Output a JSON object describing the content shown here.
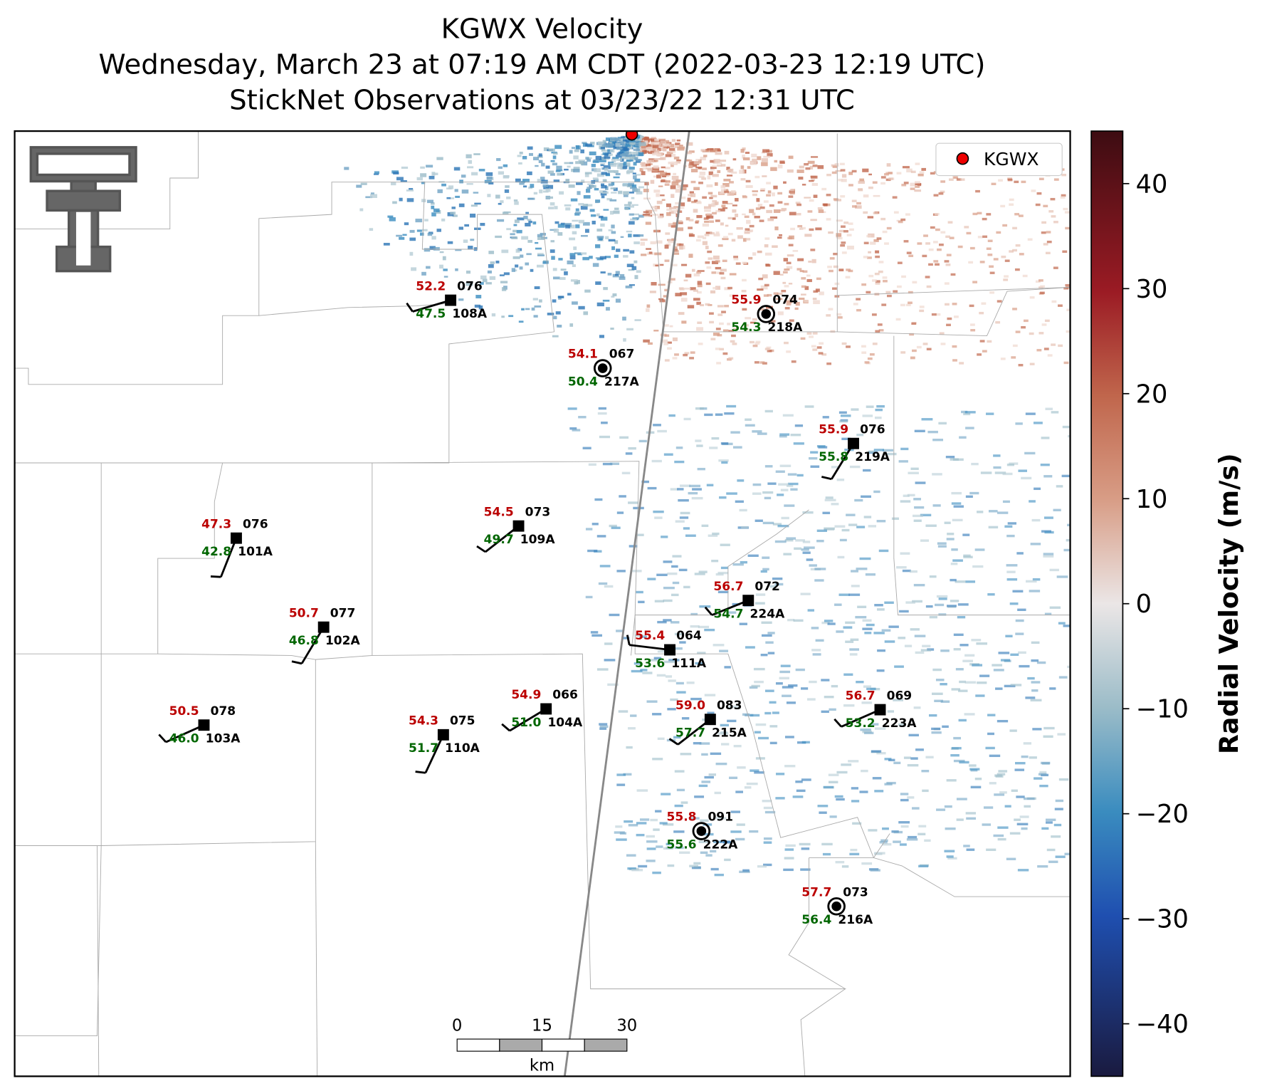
{
  "title_lines": [
    "KGWX Velocity",
    "Wednesday, March 23 at 07:19 AM CDT (2022-03-23 12:19 UTC)",
    "StickNet Observations at 03/23/22 12:31 UTC"
  ],
  "legend": {
    "label": "KGWX"
  },
  "colorbar": {
    "label": "Radial Velocity (m/s)",
    "lim": [
      -45,
      45
    ],
    "ticks": [
      {
        "value": -40,
        "label": "−40"
      },
      {
        "value": -30,
        "label": "−30"
      },
      {
        "value": -20,
        "label": "−20"
      },
      {
        "value": -10,
        "label": "−10"
      },
      0,
      10,
      20,
      30,
      40
    ]
  },
  "scale_bar": {
    "ticks": [
      0,
      15,
      30
    ],
    "unit": "km"
  },
  "stations": [
    {
      "id": "108A",
      "temp": "52.2",
      "dew": "47.5",
      "dir": "076"
    },
    {
      "id": "218A",
      "temp": "55.9",
      "dew": "54.3",
      "dir": "074"
    },
    {
      "id": "217A",
      "temp": "54.1",
      "dew": "50.4",
      "dir": "067"
    },
    {
      "id": "219A",
      "temp": "55.9",
      "dew": "55.8",
      "dir": "076"
    },
    {
      "id": "101A",
      "temp": "47.3",
      "dew": "42.8",
      "dir": "076"
    },
    {
      "id": "109A",
      "temp": "54.5",
      "dew": "49.7",
      "dir": "073"
    },
    {
      "id": "224A",
      "temp": "56.7",
      "dew": "54.7",
      "dir": "072"
    },
    {
      "id": "102A",
      "temp": "50.7",
      "dew": "46.8",
      "dir": "077"
    },
    {
      "id": "111A",
      "temp": "55.4",
      "dew": "53.6",
      "dir": "064"
    },
    {
      "id": "103A",
      "temp": "50.5",
      "dew": "46.0",
      "dir": "078"
    },
    {
      "id": "104A",
      "temp": "54.9",
      "dew": "51.0",
      "dir": "066"
    },
    {
      "id": "110A",
      "temp": "54.3",
      "dew": "51.7",
      "dir": "075"
    },
    {
      "id": "215A",
      "temp": "59.0",
      "dew": "57.7",
      "dir": "083"
    },
    {
      "id": "223A",
      "temp": "56.7",
      "dew": "53.2",
      "dir": "069"
    },
    {
      "id": "222A",
      "temp": "55.8",
      "dew": "55.6",
      "dir": "091"
    },
    {
      "id": "216A",
      "temp": "57.7",
      "dew": "56.4",
      "dir": "073"
    }
  ]
}
